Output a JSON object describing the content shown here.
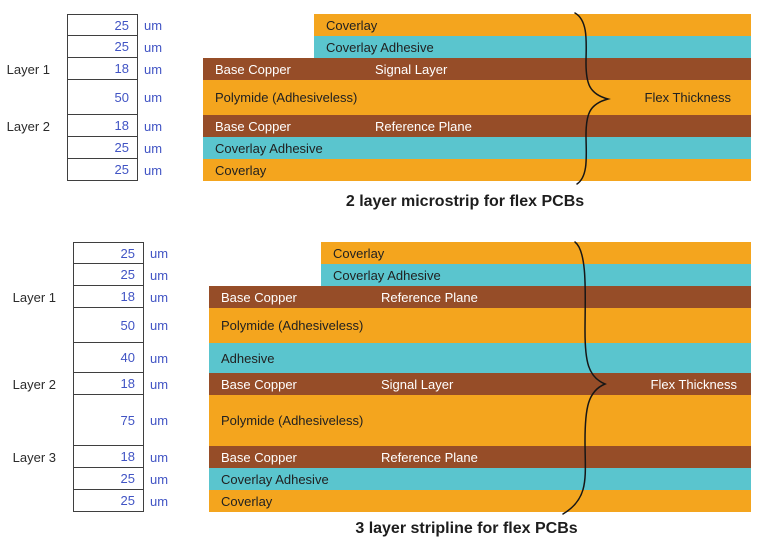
{
  "palette": {
    "orange": "#F4A51E",
    "teal": "#5AC5CE",
    "brown": "#964D28",
    "value_blue": "#4154C4",
    "text_dark": "#212121",
    "text_light": "#FFFFFF",
    "table_border": "#3F3F3F",
    "brace_stroke": "#161616"
  },
  "unit_label": "um",
  "diagrams": [
    {
      "title": "2 layer microstrip for flex PCBs",
      "flex_thickness_label": "Flex Thickness",
      "flex_label_row": 3,
      "rows": [
        {
          "thickness": "25",
          "material": "Coverlay",
          "color": "orange",
          "indent": true
        },
        {
          "thickness": "25",
          "material": "Coverlay Adhesive",
          "color": "teal",
          "indent": true
        },
        {
          "thickness": "18",
          "material": "Base Copper",
          "role": "Signal Layer",
          "color": "brown",
          "layer_label": "Layer 1"
        },
        {
          "thickness": "50",
          "material": "Polymide (Adhesiveless)",
          "color": "orange"
        },
        {
          "thickness": "18",
          "material": "Base Copper",
          "role": "Reference Plane",
          "color": "brown",
          "layer_label": "Layer 2"
        },
        {
          "thickness": "25",
          "material": "Coverlay Adhesive",
          "color": "teal"
        },
        {
          "thickness": "25",
          "material": "Coverlay",
          "color": "orange"
        }
      ]
    },
    {
      "title": "3 layer stripline for flex PCBs",
      "flex_thickness_label": "Flex Thickness",
      "flex_label_row": 5,
      "rows": [
        {
          "thickness": "25",
          "material": "Coverlay",
          "color": "orange",
          "indent": true
        },
        {
          "thickness": "25",
          "material": "Coverlay Adhesive",
          "color": "teal",
          "indent": true
        },
        {
          "thickness": "18",
          "material": "Base Copper",
          "role": "Reference Plane",
          "color": "brown",
          "layer_label": "Layer 1"
        },
        {
          "thickness": "50",
          "material": "Polymide (Adhesiveless)",
          "color": "orange"
        },
        {
          "thickness": "40",
          "material": "Adhesive",
          "color": "teal"
        },
        {
          "thickness": "18",
          "material": "Base Copper",
          "role": "Signal Layer",
          "color": "brown",
          "layer_label": "Layer 2"
        },
        {
          "thickness": "75",
          "material": "Polymide (Adhesiveless)",
          "color": "orange"
        },
        {
          "thickness": "18",
          "material": "Base Copper",
          "role": "Reference Plane",
          "color": "brown",
          "layer_label": "Layer 3"
        },
        {
          "thickness": "25",
          "material": "Coverlay Adhesive",
          "color": "teal"
        },
        {
          "thickness": "25",
          "material": "Coverlay",
          "color": "orange"
        }
      ]
    }
  ]
}
